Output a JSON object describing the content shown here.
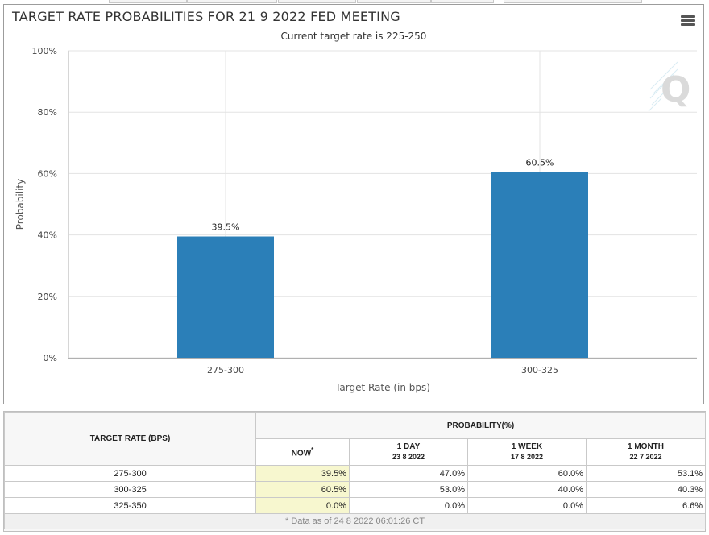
{
  "chart": {
    "title": "TARGET RATE PROBABILITIES FOR 21 9 2022 FED MEETING",
    "subtitle": "Current target rate is 225-250",
    "menu_icon": "hamburger-menu-icon",
    "watermark_icon": "q-logo-icon",
    "bar_color": "#2b7fb8"
  },
  "chart_data": {
    "type": "bar",
    "title": "TARGET RATE PROBABILITIES FOR 21 9 2022 FED MEETING",
    "subtitle": "Current target rate is 225-250",
    "categories": [
      "275-300",
      "300-325"
    ],
    "values": [
      39.5,
      60.5
    ],
    "data_labels": [
      "39.5%",
      "60.5%"
    ],
    "xlabel": "Target Rate (in bps)",
    "ylabel": "Probability",
    "ylim": [
      0,
      100
    ],
    "yticks": [
      0,
      20,
      40,
      60,
      80,
      100
    ],
    "ytick_labels": [
      "0%",
      "20%",
      "40%",
      "60%",
      "80%",
      "100%"
    ],
    "grid": true,
    "legend": "none"
  },
  "table": {
    "header_rate": "TARGET RATE (BPS)",
    "header_probability": "PROBABILITY(%)",
    "columns": [
      {
        "label": "NOW",
        "sup": "*",
        "date": ""
      },
      {
        "label": "1 DAY",
        "sup": "",
        "date": "23 8 2022"
      },
      {
        "label": "1 WEEK",
        "sup": "",
        "date": "17 8 2022"
      },
      {
        "label": "1 MONTH",
        "sup": "",
        "date": "22 7 2022"
      }
    ],
    "rows": [
      {
        "rate": "275-300",
        "values": [
          "39.5%",
          "47.0%",
          "60.0%",
          "53.1%"
        ]
      },
      {
        "rate": "300-325",
        "values": [
          "60.5%",
          "53.0%",
          "40.0%",
          "40.3%"
        ]
      },
      {
        "rate": "325-350",
        "values": [
          "0.0%",
          "0.0%",
          "0.0%",
          "6.6%"
        ]
      }
    ],
    "footnote": "* Data as of 24 8 2022 06:01:26 CT"
  }
}
